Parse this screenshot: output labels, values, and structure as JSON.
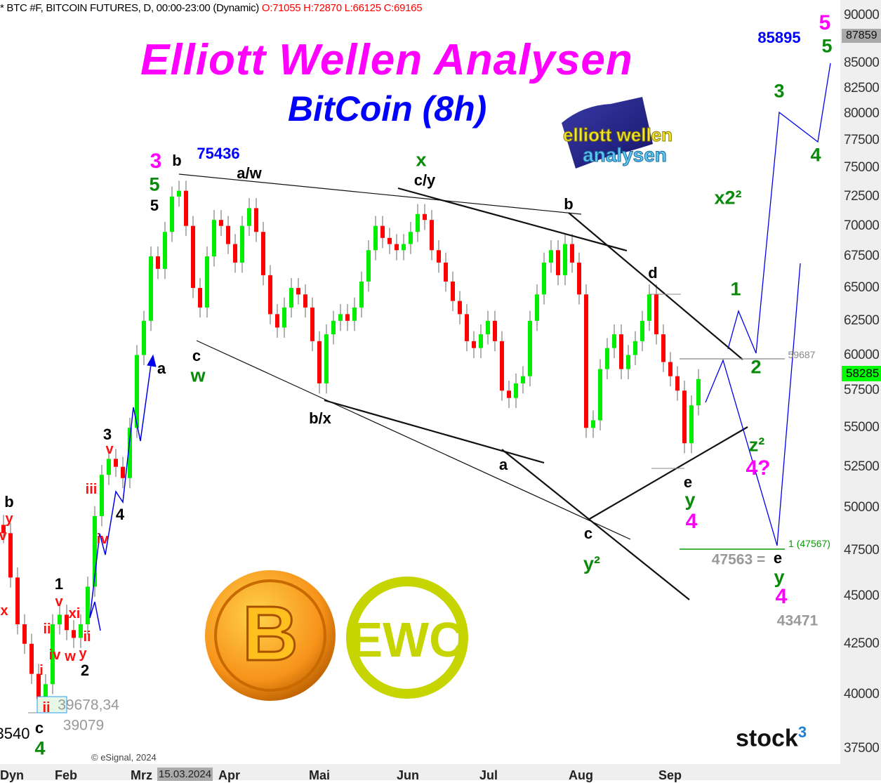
{
  "header": {
    "symbol_info": "* BTC #F, BITCOIN FUTURES, D, 00:00-23:00 (Dynamic)",
    "ohlc": "O:71055 H:72870 L:66125 C:69165"
  },
  "title": "Elliott Wellen Analysen",
  "subtitle": "BitCoin (8h)",
  "logos": {
    "ewa": "elliott wellen analysen",
    "ewc": "EWC",
    "bitcoin": "B",
    "stock3": "stock",
    "stock3_sup": "3"
  },
  "copyright": "© eSignal, 2024",
  "price_tags": {
    "current": "58285",
    "current_color": "#00ff00",
    "marker": "87859",
    "marker_color": "#aaaaaa"
  },
  "chart_data": {
    "type": "candlestick",
    "scale": "log",
    "ylim": [
      37500,
      90000
    ],
    "yticks": [
      "90000",
      "85000",
      "82500",
      "80000",
      "77500",
      "75000",
      "72500",
      "70000",
      "67500",
      "65000",
      "62500",
      "60000",
      "57500",
      "55000",
      "52500",
      "50000",
      "47500",
      "45000",
      "42500",
      "40000",
      "37500"
    ],
    "xticks": [
      "Dyn",
      "Feb",
      "Mrz",
      "15.03.2024",
      "Apr",
      "Mai",
      "Jun",
      "Jul",
      "Aug",
      "Sep"
    ],
    "up_color": "#00ee00",
    "down_color": "#ff0000",
    "close": [
      48500,
      46000,
      43500,
      42500,
      41000,
      39800,
      40500,
      43500,
      44000,
      43200,
      42800,
      43500,
      45500,
      49500,
      52000,
      53000,
      52500,
      51800,
      55000,
      60000,
      62500,
      67500,
      66500,
      69500,
      72500,
      73000,
      70000,
      65000,
      63500,
      67500,
      70500,
      70000,
      68500,
      67000,
      70000,
      71500,
      69500,
      66000,
      63000,
      62000,
      63500,
      65000,
      64500,
      63500,
      61000,
      58000,
      61500,
      62500,
      63000,
      62500,
      63500,
      65500,
      68000,
      70000,
      69000,
      68500,
      68000,
      68500,
      69500,
      71000,
      70500,
      68000,
      67000,
      65500,
      64000,
      63000,
      61000,
      60500,
      61500,
      62500,
      61000,
      57500,
      57000,
      58000,
      58500,
      62500,
      64500,
      67000,
      68000,
      66000,
      68500,
      67000,
      64500,
      55000,
      55500,
      59000,
      60500,
      61500,
      59000,
      60000,
      61000,
      62500,
      64500,
      61500,
      59500,
      58500,
      57500,
      54000,
      56500,
      58300
    ]
  },
  "levels": {
    "resistance": "59687",
    "target": "1 (47567)"
  },
  "annotations": {
    "m3": "3",
    "m5": "5",
    "m4a": "4",
    "m4q": "4?",
    "m4b": "4",
    "g5": "5",
    "gx": "x",
    "gx2": "x2²",
    "g3": "3",
    "g5b": "5",
    "g4": "4",
    "g1": "1",
    "g2": "2",
    "gz2": "z²",
    "gy": "y",
    "gy2": "y²",
    "gyb": "y",
    "gw": "w",
    "g4l": "4",
    "kb": "b",
    "kaw": "a/w",
    "kcy": "c/y",
    "kb2": "b",
    "kd": "d",
    "k5": "5",
    "ka": "a",
    "kc": "c",
    "kbx": "b/x",
    "ka2": "a",
    "kc2": "c",
    "ke": "e",
    "ke2": "e",
    "k3": "3",
    "k4": "4",
    "k1": "1",
    "k2": "2",
    "kbl": "b",
    "kcl": "c",
    "klow": "3540",
    "b75436": "75436",
    "b85895": "85895",
    "rv": "v",
    "riii": "iii",
    "riv": "iv",
    "rv2": "v",
    "rii": "ii",
    "rxi": "xi",
    "riv2": "iv",
    "rw": "w",
    "rii2": "ii",
    "ry": "y",
    "ri": "i",
    "rii3": "ii",
    "ryl": "y",
    "rvl": "v",
    "rxl": "x",
    "gr1": "39678,34",
    "gr2": "39079",
    "gr3": "47563 =",
    "gr4": "43471"
  }
}
